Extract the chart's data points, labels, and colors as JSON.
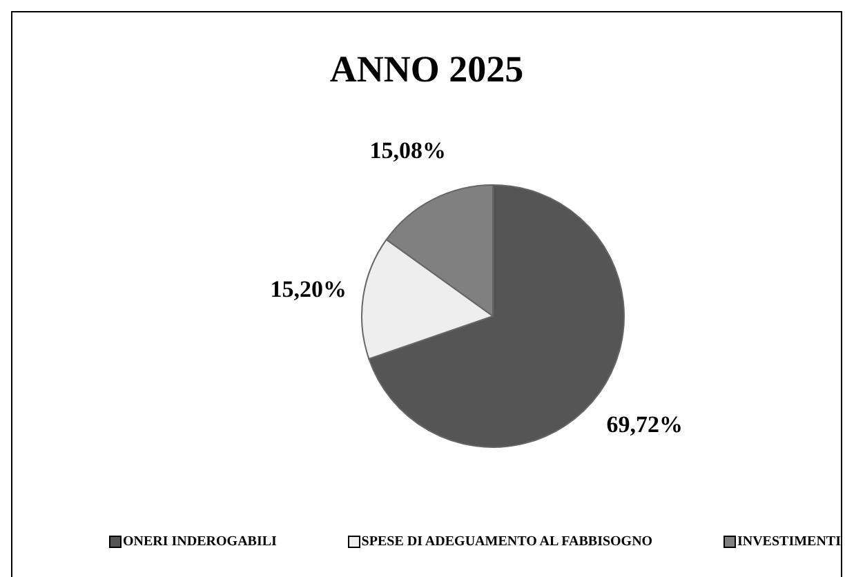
{
  "chart_data": {
    "type": "pie",
    "title": "ANNO 2025",
    "categories": [
      "ONERI INDEROGABILI",
      "SPESE DI ADEGUAMENTO AL FABBISOGNO",
      "INVESTIMENTI"
    ],
    "values": [
      69.72,
      15.2,
      15.08
    ],
    "colors": [
      "#555555",
      "#eeeeee",
      "#808080"
    ],
    "value_labels": [
      "69,72%",
      "15,20%",
      "15,08%"
    ],
    "legend": "bottom"
  }
}
